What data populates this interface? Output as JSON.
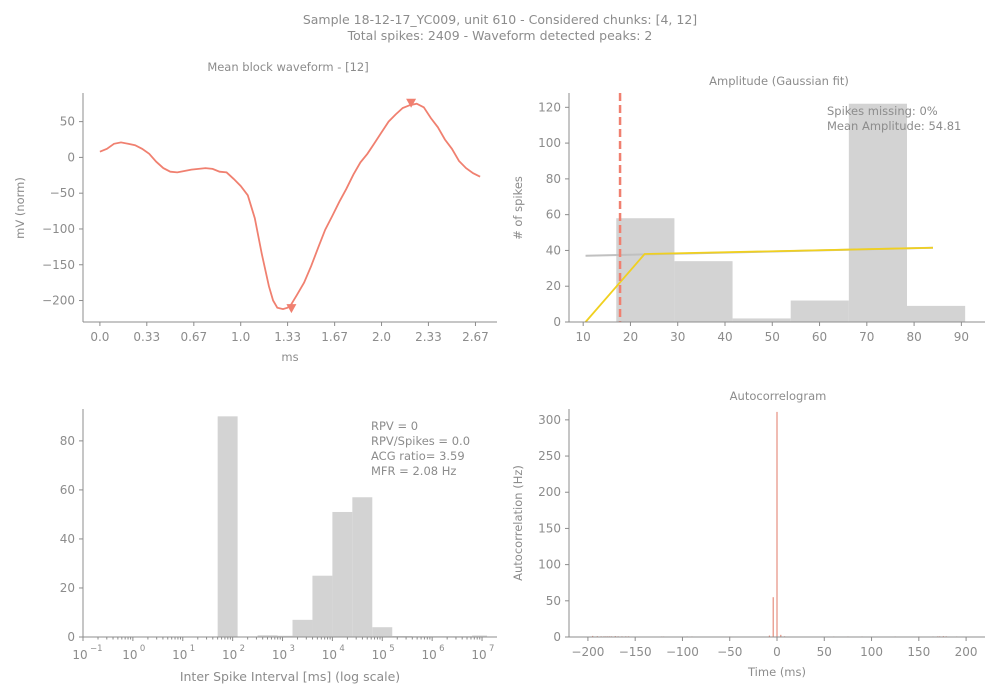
{
  "figure": {
    "suptitle_line1": "Sample 18-12-17_YC009, unit 610 - Considered chunks: [4, 12]",
    "suptitle_line2": "Total spikes: 2409 - Waveform detected peaks: 2"
  },
  "colors": {
    "axis": "#8c8c8c",
    "waveform": "#f08070",
    "hist": "#d3d3d3",
    "gauss_fit": "#c0c0c0",
    "cut_fit": "#f0d020",
    "threshold": "#f08070",
    "acg": "#e69080"
  },
  "chart_data": [
    {
      "id": "waveform",
      "type": "line",
      "title": "Mean block waveform - [12]",
      "xlabel": "ms",
      "ylabel": "mV (norm)",
      "xlim": [
        -0.12,
        2.82
      ],
      "ylim": [
        -230,
        90
      ],
      "xticks": [
        0.0,
        0.333,
        0.667,
        1.0,
        1.333,
        1.667,
        2.0,
        2.333,
        2.667
      ],
      "xticklabels": [
        "0.0",
        "0.33",
        "0.67",
        "1.0",
        "1.33",
        "1.67",
        "2.0",
        "2.33",
        "2.67"
      ],
      "yticks": [
        50,
        0,
        -50,
        -100,
        -150,
        -200
      ],
      "yticklabels": [
        "50",
        "0",
        "−50",
        "−100",
        "−150",
        "−200"
      ],
      "x": [
        0,
        0.05,
        0.1,
        0.15,
        0.2,
        0.25,
        0.3,
        0.35,
        0.4,
        0.45,
        0.5,
        0.55,
        0.6,
        0.65,
        0.7,
        0.75,
        0.8,
        0.85,
        0.9,
        0.95,
        1.0,
        1.05,
        1.1,
        1.15,
        1.2,
        1.23,
        1.26,
        1.3,
        1.333,
        1.36,
        1.4,
        1.45,
        1.5,
        1.55,
        1.6,
        1.65,
        1.7,
        1.75,
        1.8,
        1.85,
        1.9,
        1.95,
        2.0,
        2.05,
        2.1,
        2.15,
        2.2,
        2.25,
        2.3,
        2.35,
        2.4,
        2.45,
        2.5,
        2.55,
        2.6,
        2.65,
        2.7
      ],
      "y": [
        8,
        12,
        19,
        21,
        19,
        17,
        12,
        5,
        -6,
        -15,
        -20,
        -21,
        -19,
        -17,
        -16,
        -15,
        -16,
        -20,
        -21,
        -30,
        -40,
        -53,
        -85,
        -135,
        -180,
        -200,
        -210,
        -212,
        -210,
        -205,
        -192,
        -175,
        -152,
        -126,
        -101,
        -82,
        -62,
        -44,
        -24,
        -7,
        5,
        20,
        35,
        50,
        60,
        69,
        73,
        75,
        70,
        55,
        42,
        25,
        12,
        -5,
        -15,
        -22,
        -27
      ],
      "markers": [
        {
          "x": 1.36,
          "y": -212,
          "direction": "down"
        },
        {
          "x": 2.21,
          "y": 75,
          "direction": "down"
        }
      ]
    },
    {
      "id": "amplitude",
      "type": "bar",
      "title": "Amplitude (Gaussian fit)",
      "xlabel": "",
      "ylabel": "# of spikes",
      "xlim": [
        7,
        95
      ],
      "ylim": [
        0,
        128
      ],
      "xticks": [
        10,
        20,
        30,
        40,
        50,
        60,
        70,
        80,
        90
      ],
      "yticks": [
        0,
        20,
        40,
        60,
        80,
        100,
        120
      ],
      "bins": [
        [
          17.0,
          29.3
        ],
        [
          29.3,
          41.6
        ],
        [
          41.6,
          53.9
        ],
        [
          53.9,
          66.2
        ],
        [
          66.2,
          78.5
        ],
        [
          78.5,
          90.8
        ]
      ],
      "values": [
        58,
        34,
        2,
        12,
        122,
        9
      ],
      "gauss_fit": {
        "x": [
          10.5,
          84
        ],
        "y": [
          37,
          41.5
        ]
      },
      "cut_fit": {
        "x": [
          10.5,
          23,
          84
        ],
        "y": [
          0,
          38,
          41.5
        ]
      },
      "threshold_x": 17.8,
      "annotation": [
        "Spikes missing: 0%",
        "Mean Amplitude: 54.81"
      ]
    },
    {
      "id": "isi",
      "type": "bar",
      "title": "",
      "xlabel": "Inter Spike Interval [ms] (log scale)",
      "ylabel": "",
      "xscale": "log",
      "xlim_log10": [
        -1,
        7.3
      ],
      "ylim": [
        0,
        93
      ],
      "xticks_log10": [
        -1,
        0,
        1,
        2,
        3,
        4,
        5,
        6,
        7
      ],
      "xticklabels": [
        "10",
        "10",
        "10",
        "10",
        "10",
        "10",
        "10",
        "10",
        "10"
      ],
      "xtickexponents": [
        "−1",
        "0",
        "1",
        "2",
        "3",
        "4",
        "5",
        "6",
        "7"
      ],
      "yticks": [
        0,
        20,
        40,
        60,
        80
      ],
      "bins_log10": [
        [
          1.7,
          2.1
        ],
        [
          2.5,
          2.9
        ],
        [
          2.9,
          3.2
        ],
        [
          3.2,
          3.6
        ],
        [
          3.6,
          4.0
        ],
        [
          4.0,
          4.4
        ],
        [
          4.4,
          4.8
        ],
        [
          4.8,
          5.2
        ],
        [
          5.2,
          5.6
        ],
        [
          5.6,
          6.0
        ],
        [
          6.0,
          6.4
        ],
        [
          6.4,
          6.8
        ],
        [
          6.8,
          7.1
        ]
      ],
      "values": [
        90,
        0.7,
        0.5,
        7,
        25,
        51,
        57,
        4,
        0.4,
        0.3,
        0.3,
        0.3,
        0.6
      ],
      "annotation": [
        "RPV = 0",
        "RPV/Spikes = 0.0",
        "ACG ratio= 3.59",
        "MFR = 2.08 Hz"
      ]
    },
    {
      "id": "acg",
      "type": "bar",
      "title": "Autocorrelogram",
      "xlabel": "Time (ms)",
      "ylabel": "Autocorrelation (Hz)",
      "xlim": [
        -220,
        220
      ],
      "ylim": [
        0,
        315
      ],
      "xticks": [
        -200,
        -150,
        -100,
        -50,
        0,
        50,
        100,
        150,
        200
      ],
      "xticklabels": [
        "−200",
        "−150",
        "−100",
        "−50",
        "0",
        "50",
        "100",
        "150",
        "200"
      ],
      "yticks": [
        0,
        50,
        100,
        150,
        200,
        250,
        300
      ],
      "x": [
        -195,
        -190,
        -186,
        -183,
        -181,
        -179,
        -177,
        -175,
        -171,
        -168,
        -164,
        -160,
        -157,
        -122,
        -120,
        -95,
        -90,
        -50,
        -8,
        -4,
        0,
        4,
        8,
        60,
        75,
        90,
        125,
        150,
        165,
        170,
        172,
        176,
        179,
        190
      ],
      "values": [
        1.5,
        1.2,
        1.0,
        1.0,
        1.0,
        1.0,
        1.0,
        1.0,
        1.3,
        1.0,
        1.0,
        1.0,
        1.0,
        0.8,
        0.8,
        0.8,
        0.8,
        0.8,
        2,
        55,
        311,
        3,
        1,
        0.8,
        0.8,
        0.8,
        0.8,
        0.8,
        0.8,
        1.0,
        1.0,
        1.2,
        1.0,
        0.8
      ]
    }
  ]
}
